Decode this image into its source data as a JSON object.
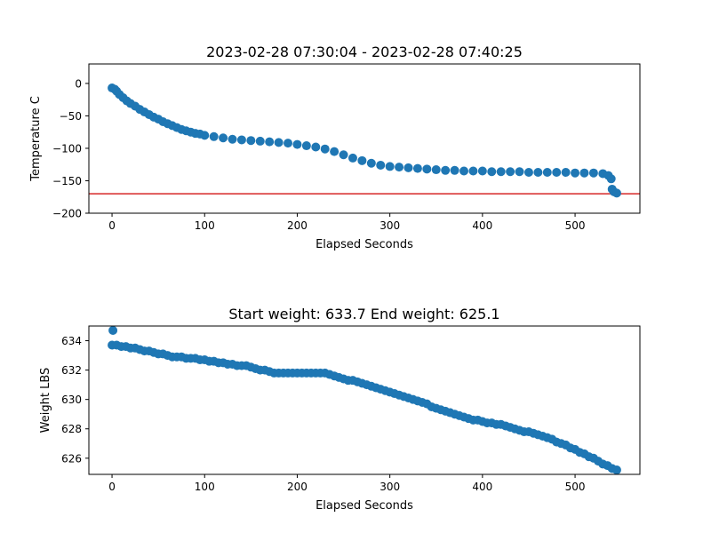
{
  "chart_data": [
    {
      "type": "scatter",
      "title": "2023-02-28 07:30:04 - 2023-02-28 07:40:25",
      "xlabel": "Elapsed Seconds",
      "ylabel": "Temperature C",
      "xlim": [
        -25,
        570
      ],
      "ylim": [
        -200,
        30
      ],
      "xticks": [
        0,
        100,
        200,
        300,
        400,
        500
      ],
      "yticks": [
        0,
        -50,
        -100,
        -150,
        -200
      ],
      "xtick_labels": [
        "0",
        "100",
        "200",
        "300",
        "400",
        "500"
      ],
      "ytick_labels": [
        "0",
        "−50",
        "−100",
        "−150",
        "−200"
      ],
      "reference_line": {
        "y": -170,
        "color": "#d62728"
      },
      "series": [
        {
          "color": "#1f77b4",
          "points": [
            [
              0,
              -7
            ],
            [
              3,
              -9
            ],
            [
              5,
              -12
            ],
            [
              8,
              -17
            ],
            [
              12,
              -22
            ],
            [
              16,
              -27
            ],
            [
              20,
              -31
            ],
            [
              25,
              -35
            ],
            [
              30,
              -40
            ],
            [
              35,
              -44
            ],
            [
              40,
              -48
            ],
            [
              45,
              -52
            ],
            [
              50,
              -55
            ],
            [
              55,
              -59
            ],
            [
              60,
              -62
            ],
            [
              65,
              -65
            ],
            [
              70,
              -68
            ],
            [
              75,
              -71
            ],
            [
              80,
              -73
            ],
            [
              85,
              -75
            ],
            [
              90,
              -77
            ],
            [
              95,
              -78
            ],
            [
              100,
              -80
            ],
            [
              110,
              -82
            ],
            [
              120,
              -84
            ],
            [
              130,
              -86
            ],
            [
              140,
              -87
            ],
            [
              150,
              -88
            ],
            [
              160,
              -89
            ],
            [
              170,
              -90
            ],
            [
              180,
              -91
            ],
            [
              190,
              -92
            ],
            [
              200,
              -94
            ],
            [
              210,
              -96
            ],
            [
              220,
              -98
            ],
            [
              230,
              -101
            ],
            [
              240,
              -105
            ],
            [
              250,
              -110
            ],
            [
              260,
              -115
            ],
            [
              270,
              -119
            ],
            [
              280,
              -123
            ],
            [
              290,
              -126
            ],
            [
              300,
              -128
            ],
            [
              310,
              -129
            ],
            [
              320,
              -130
            ],
            [
              330,
              -131
            ],
            [
              340,
              -132
            ],
            [
              350,
              -133
            ],
            [
              360,
              -134
            ],
            [
              370,
              -134
            ],
            [
              380,
              -135
            ],
            [
              390,
              -135
            ],
            [
              400,
              -135
            ],
            [
              410,
              -136
            ],
            [
              420,
              -136
            ],
            [
              430,
              -136
            ],
            [
              440,
              -136
            ],
            [
              450,
              -137
            ],
            [
              460,
              -137
            ],
            [
              470,
              -137
            ],
            [
              480,
              -137
            ],
            [
              490,
              -137
            ],
            [
              500,
              -138
            ],
            [
              510,
              -138
            ],
            [
              520,
              -138
            ],
            [
              530,
              -139
            ],
            [
              536,
              -142
            ],
            [
              539,
              -147
            ],
            [
              540,
              -163
            ],
            [
              542,
              -167
            ],
            [
              545,
              -169
            ]
          ]
        }
      ]
    },
    {
      "type": "scatter",
      "title": "Start weight: 633.7 End weight: 625.1",
      "xlabel": "Elapsed Seconds",
      "ylabel": "Weight LBS",
      "xlim": [
        -25,
        570
      ],
      "ylim": [
        624.9,
        635.0
      ],
      "xticks": [
        0,
        100,
        200,
        300,
        400,
        500
      ],
      "yticks": [
        626,
        628,
        630,
        632,
        634
      ],
      "xtick_labels": [
        "0",
        "100",
        "200",
        "300",
        "400",
        "500"
      ],
      "ytick_labels": [
        "626",
        "628",
        "630",
        "632",
        "634"
      ],
      "series": [
        {
          "color": "#1f77b4",
          "points": [
            [
              1,
              634.7
            ],
            [
              0,
              633.7
            ],
            [
              5,
              633.7
            ],
            [
              10,
              633.6
            ],
            [
              15,
              633.6
            ],
            [
              20,
              633.5
            ],
            [
              25,
              633.5
            ],
            [
              30,
              633.4
            ],
            [
              35,
              633.3
            ],
            [
              40,
              633.3
            ],
            [
              45,
              633.2
            ],
            [
              50,
              633.1
            ],
            [
              55,
              633.1
            ],
            [
              60,
              633.0
            ],
            [
              65,
              632.9
            ],
            [
              70,
              632.9
            ],
            [
              75,
              632.9
            ],
            [
              80,
              632.8
            ],
            [
              85,
              632.8
            ],
            [
              90,
              632.8
            ],
            [
              95,
              632.7
            ],
            [
              100,
              632.7
            ],
            [
              105,
              632.6
            ],
            [
              110,
              632.6
            ],
            [
              115,
              632.5
            ],
            [
              120,
              632.5
            ],
            [
              125,
              632.4
            ],
            [
              130,
              632.4
            ],
            [
              135,
              632.3
            ],
            [
              140,
              632.3
            ],
            [
              145,
              632.3
            ],
            [
              150,
              632.2
            ],
            [
              155,
              632.1
            ],
            [
              160,
              632.0
            ],
            [
              165,
              632.0
            ],
            [
              170,
              631.9
            ],
            [
              175,
              631.8
            ],
            [
              180,
              631.8
            ],
            [
              185,
              631.8
            ],
            [
              190,
              631.8
            ],
            [
              195,
              631.8
            ],
            [
              200,
              631.8
            ],
            [
              205,
              631.8
            ],
            [
              210,
              631.8
            ],
            [
              215,
              631.8
            ],
            [
              220,
              631.8
            ],
            [
              225,
              631.8
            ],
            [
              230,
              631.8
            ],
            [
              235,
              631.7
            ],
            [
              240,
              631.6
            ],
            [
              245,
              631.5
            ],
            [
              250,
              631.4
            ],
            [
              255,
              631.3
            ],
            [
              260,
              631.3
            ],
            [
              265,
              631.2
            ],
            [
              270,
              631.1
            ],
            [
              275,
              631.0
            ],
            [
              280,
              630.9
            ],
            [
              285,
              630.8
            ],
            [
              290,
              630.7
            ],
            [
              295,
              630.6
            ],
            [
              300,
              630.5
            ],
            [
              305,
              630.4
            ],
            [
              310,
              630.3
            ],
            [
              315,
              630.2
            ],
            [
              320,
              630.1
            ],
            [
              325,
              630.0
            ],
            [
              330,
              629.9
            ],
            [
              335,
              629.8
            ],
            [
              340,
              629.7
            ],
            [
              345,
              629.5
            ],
            [
              350,
              629.4
            ],
            [
              355,
              629.3
            ],
            [
              360,
              629.2
            ],
            [
              365,
              629.1
            ],
            [
              370,
              629.0
            ],
            [
              375,
              628.9
            ],
            [
              380,
              628.8
            ],
            [
              385,
              628.7
            ],
            [
              390,
              628.6
            ],
            [
              395,
              628.6
            ],
            [
              400,
              628.5
            ],
            [
              405,
              628.4
            ],
            [
              410,
              628.4
            ],
            [
              415,
              628.3
            ],
            [
              420,
              628.3
            ],
            [
              425,
              628.2
            ],
            [
              430,
              628.1
            ],
            [
              435,
              628.0
            ],
            [
              440,
              627.9
            ],
            [
              445,
              627.8
            ],
            [
              450,
              627.8
            ],
            [
              455,
              627.7
            ],
            [
              460,
              627.6
            ],
            [
              465,
              627.5
            ],
            [
              470,
              627.4
            ],
            [
              475,
              627.3
            ],
            [
              480,
              627.1
            ],
            [
              485,
              627.0
            ],
            [
              490,
              626.9
            ],
            [
              495,
              626.7
            ],
            [
              500,
              626.6
            ],
            [
              505,
              626.4
            ],
            [
              510,
              626.3
            ],
            [
              515,
              626.1
            ],
            [
              520,
              626.0
            ],
            [
              525,
              625.8
            ],
            [
              530,
              625.6
            ],
            [
              535,
              625.5
            ],
            [
              540,
              625.3
            ],
            [
              545,
              625.2
            ]
          ]
        }
      ]
    }
  ]
}
